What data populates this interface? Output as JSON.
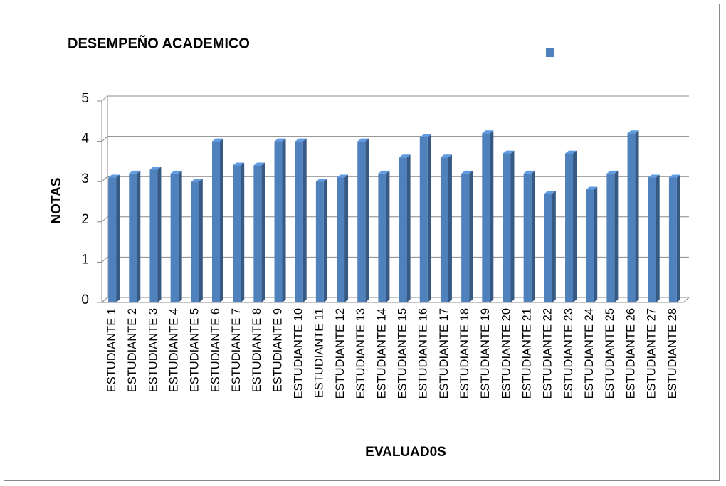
{
  "chart_data": {
    "type": "bar",
    "title": "DESEMPEÑO ACADEMICO",
    "x_label": "EVALUAD0S",
    "y_label": "NOTAS",
    "categories": [
      "ESTUDIANTE 1",
      "ESTUDIANTE 2",
      "ESTUDIANTE 3",
      "ESTUDIANTE 4",
      "ESTUDIANTE 5",
      "ESTUDIANTE 6",
      "ESTUDIANTE 7",
      "ESTUDIANTE 8",
      "ESTUDIANTE 9",
      "ESTUDIANTE 10",
      "ESTUDIANTE 11",
      "ESTUDIANTE 12",
      "ESTUDIANTE 13",
      "ESTUDIANTE 14",
      "ESTUDIANTE 15",
      "ESTUDIANTE 16",
      "ESTUDIANTE 17",
      "ESTUDIANTE 18",
      "ESTUDIANTE 19",
      "ESTUDIANTE 20",
      "ESTUDIANTE 21",
      "ESTUDIANTE 22",
      "ESTUDIANTE 23",
      "ESTUDIANTE 24",
      "ESTUDIANTE 25",
      "ESTUDIANTE 26",
      "ESTUDIANTE 27",
      "ESTUDIANTE 28"
    ],
    "values": [
      3.1,
      3.2,
      3.3,
      3.2,
      3.0,
      4.0,
      3.4,
      3.4,
      4.0,
      4.0,
      3.0,
      3.1,
      4.0,
      3.2,
      3.6,
      4.1,
      3.6,
      3.2,
      4.2,
      3.7,
      3.2,
      2.7,
      3.7,
      2.8,
      3.2,
      4.2,
      3.1,
      3.1
    ],
    "color": "#4f81bd",
    "ylim": [
      0,
      5
    ],
    "yticks": [
      0,
      1,
      2,
      3,
      4,
      5
    ],
    "grid": true
  }
}
